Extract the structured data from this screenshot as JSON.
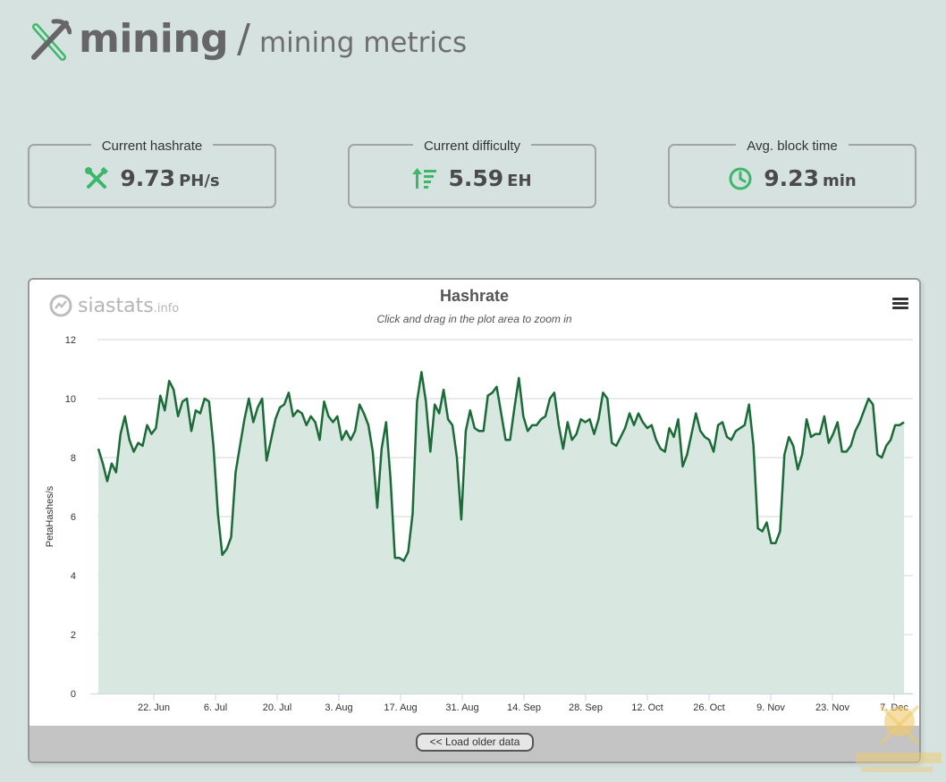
{
  "header": {
    "brand": "mining",
    "slash": "/",
    "section": "mining metrics"
  },
  "metrics": [
    {
      "label": "Current hashrate",
      "value": "9.73",
      "unit": "PH/s",
      "icon": "tools-icon"
    },
    {
      "label": "Current difficulty",
      "value": "5.59",
      "unit": "EH",
      "icon": "sort-desc-icon"
    },
    {
      "label": "Avg. block time",
      "value": "9.23",
      "unit": "min",
      "icon": "clock-icon"
    }
  ],
  "chart": {
    "brand_word": "siastats",
    "brand_suffix": ".info",
    "load_older": "<< Load older data"
  },
  "colors": {
    "accent": "#3bb86a",
    "line": "#1a6b37",
    "area": "#d9e7e1",
    "bg": "#d6e2df"
  },
  "chart_data": {
    "type": "area",
    "title": "Hashrate",
    "subtitle": "Click and drag in the plot area to zoom in",
    "ylabel": "PetaHashes/s",
    "ylim": [
      0,
      12
    ],
    "yticks": [
      0,
      2,
      4,
      6,
      8,
      10,
      12
    ],
    "xticks": [
      "22. Jun",
      "6. Jul",
      "20. Jul",
      "3. Aug",
      "17. Aug",
      "31. Aug",
      "14. Sep",
      "28. Sep",
      "12. Oct",
      "26. Oct",
      "9. Nov",
      "23. Nov",
      "7. Dec"
    ],
    "grid": true,
    "legend": "none",
    "series": [
      {
        "values": [
          8.3,
          7.8,
          7.2,
          7.8,
          7.5,
          8.8,
          9.4,
          8.6,
          8.2,
          8.5,
          8.4,
          9.1,
          8.8,
          9.0,
          10.1,
          9.6,
          10.6,
          10.3,
          9.4,
          9.9,
          10.0,
          8.9,
          9.6,
          9.5,
          10.0,
          9.9,
          8.4,
          6.1,
          4.7,
          4.9,
          5.3,
          7.5,
          8.4,
          9.3,
          10.0,
          9.2,
          9.7,
          10.0,
          7.9,
          8.6,
          9.3,
          9.7,
          9.8,
          10.2,
          9.4,
          9.6,
          9.5,
          9.1,
          9.4,
          9.2,
          8.6,
          9.9,
          9.4,
          9.2,
          9.4,
          8.6,
          8.9,
          8.6,
          8.9,
          9.8,
          9.5,
          9.1,
          8.2,
          6.3,
          8.3,
          9.2,
          7.3,
          4.6,
          4.6,
          4.5,
          4.8,
          6.1,
          9.9,
          10.9,
          9.9,
          8.2,
          9.8,
          9.5,
          10.3,
          9.3,
          9.1,
          8.0,
          5.9,
          8.9,
          9.6,
          9.0,
          8.9,
          8.9,
          10.1,
          10.2,
          10.4,
          9.5,
          8.6,
          8.6,
          9.7,
          10.7,
          9.4,
          8.9,
          9.1,
          9.1,
          9.3,
          9.4,
          10.0,
          10.2,
          9.1,
          8.3,
          9.2,
          8.6,
          8.8,
          9.3,
          9.2,
          9.3,
          8.8,
          9.3,
          10.2,
          10.0,
          8.5,
          8.4,
          8.7,
          9.0,
          9.5,
          9.1,
          9.5,
          9.2,
          9.0,
          9.1,
          8.6,
          8.3,
          8.2,
          9.0,
          8.7,
          9.3,
          7.7,
          8.1,
          8.8,
          9.5,
          8.9,
          8.7,
          8.6,
          8.2,
          9.1,
          9.2,
          8.7,
          8.6,
          8.9,
          9.0,
          9.1,
          9.8,
          8.4,
          5.6,
          5.5,
          5.8,
          5.1,
          5.1,
          5.5,
          8.1,
          8.7,
          8.4,
          7.6,
          8.1,
          9.3,
          8.7,
          8.8,
          8.8,
          9.4,
          8.5,
          8.8,
          9.2,
          8.2,
          8.2,
          8.4,
          8.9,
          9.2,
          9.6,
          10.0,
          9.8,
          8.1,
          8.0,
          8.4,
          8.6,
          9.1,
          9.1,
          9.2
        ]
      }
    ]
  }
}
